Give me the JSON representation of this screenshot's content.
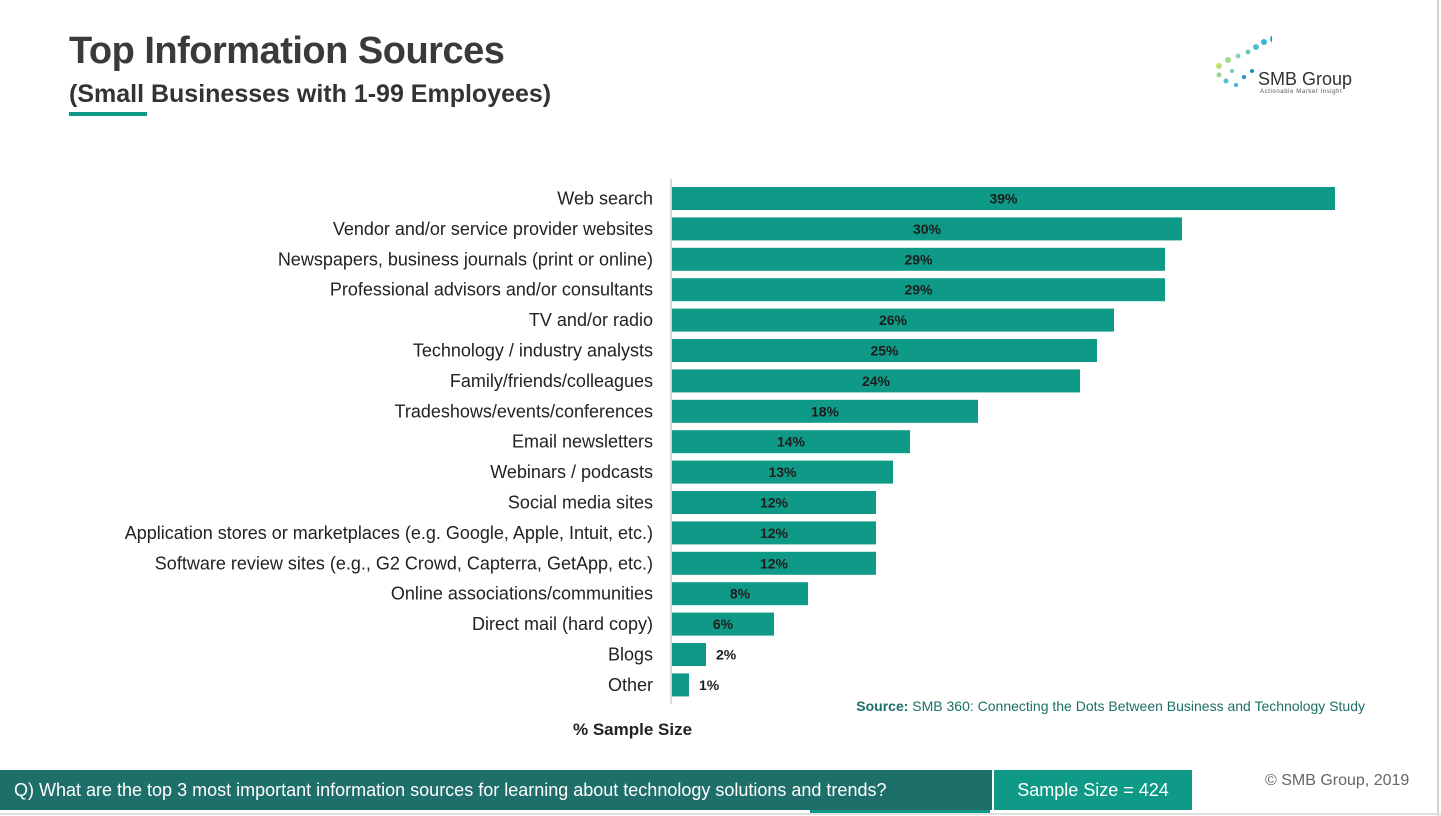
{
  "header": {
    "title": "Top Information Sources",
    "subtitle": "(Small Businesses with 1-99 Employees)"
  },
  "logo": {
    "name": "SMB Group",
    "tagline": "Actionable Market Insight"
  },
  "colors": {
    "bar": "#0e9a86",
    "question_bar": "#1e6e69",
    "sample_box": "#0e9a86",
    "label_text": "#222222"
  },
  "chart_data": {
    "type": "bar",
    "orientation": "horizontal",
    "categories": [
      "Web search",
      "Vendor and/or service provider websites",
      "Newspapers, business journals (print or online)",
      "Professional advisors and/or consultants",
      "TV and/or radio",
      "Technology / industry analysts",
      "Family/friends/colleagues",
      "Tradeshows/events/conferences",
      "Email newsletters",
      "Webinars / podcasts",
      "Social media sites",
      "Application stores or marketplaces (e.g. Google, Apple, Intuit, etc.)",
      "Software review sites (e.g., G2 Crowd, Capterra, GetApp, etc.)",
      "Online associations/communities",
      "Direct mail (hard copy)",
      "Blogs",
      "Other"
    ],
    "values": [
      39,
      30,
      29,
      29,
      26,
      25,
      24,
      18,
      14,
      13,
      12,
      12,
      12,
      8,
      6,
      2,
      1
    ],
    "data_labels": [
      "39%",
      "30%",
      "29%",
      "29%",
      "26%",
      "25%",
      "24%",
      "18%",
      "14%",
      "13%",
      "12%",
      "12%",
      "12%",
      "8%",
      "6%",
      "2%",
      "1%"
    ],
    "xlabel": "% Sample Size",
    "xlim": [
      0,
      40
    ],
    "grid": false,
    "legend": "none"
  },
  "source": {
    "label": "Source:",
    "text": " SMB 360: Connecting the Dots Between Business and Technology Study"
  },
  "footer": {
    "question": "Q) What are the top 3 most important information sources for learning about technology solutions and trends?",
    "sample_size": "Sample Size = 424",
    "copyright": "© SMB Group, 2019"
  }
}
